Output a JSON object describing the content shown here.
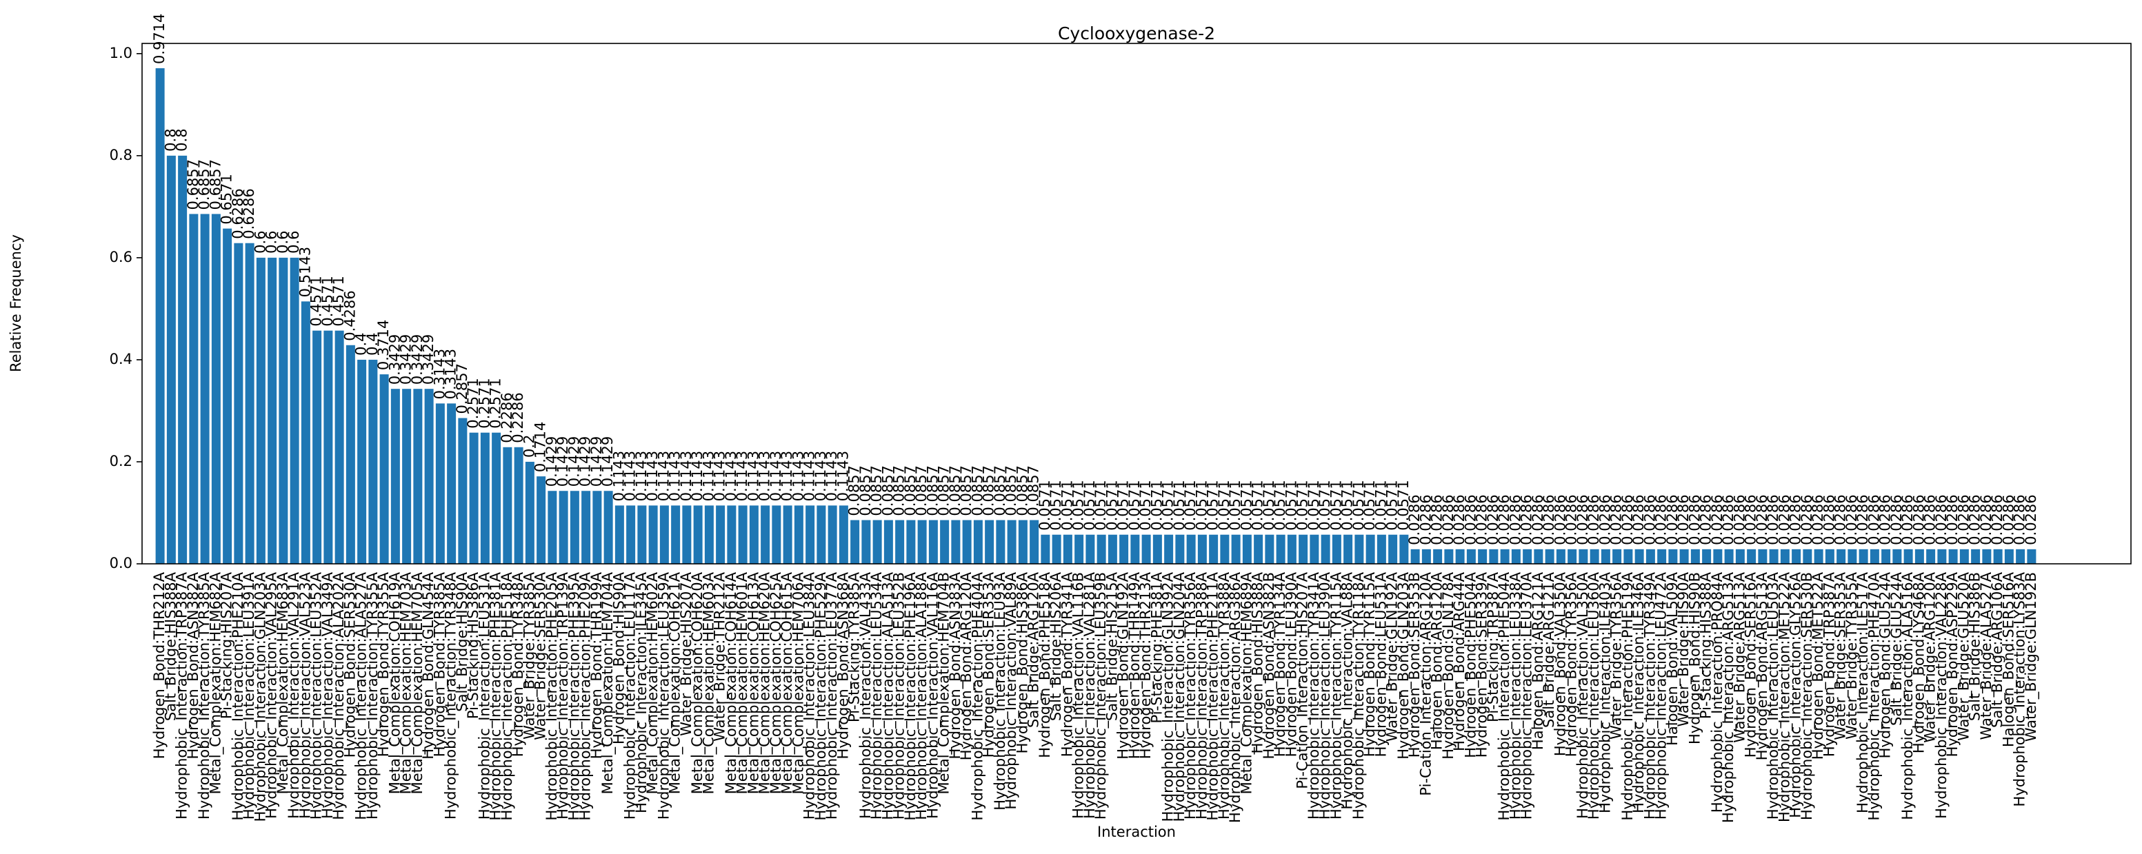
{
  "chart_data": {
    "type": "bar",
    "title": "Cyclooxygenase-2",
    "xlabel": "Interaction",
    "ylabel": "Relative Frequency",
    "color": "#1f77b4",
    "ylim": [
      0,
      1.02
    ],
    "yticks": [
      {
        "value": 0,
        "label": "0.0"
      },
      0.2,
      0.4,
      0.6,
      0.8,
      {
        "value": 1,
        "label": "1.0"
      }
    ],
    "categories": [
      "Hydrogen_Bond:THR212A",
      "Salt_Bridge:HIS388A",
      "Hydrophobic_Interaction:TRP387A",
      "Hydrogen_Bond:ASN382A",
      "Hydrophobic_Interaction:TYR385A",
      "Metal_Complexation:HEM682A",
      "Pi-Stacking:HIS207A",
      "Hydrophobic_Interaction:PHE210A",
      "Hydrophobic_Interaction:LEU391A",
      "Hydrophobic_Interaction:GLN203A",
      "Hydrophobic_Interaction:VAL295A",
      "Metal_Complexation:HEM683A",
      "Hydrophobic_Interaction:VAL291A",
      "Hydrophobic_Interaction:VAL523A",
      "Hydrophobic_Interaction:LEU352A",
      "Hydrophobic_Interaction:VAL349A",
      "Hydrophobic_Interaction:ALA202A",
      "Hydrogen_Bond:SER530A",
      "Hydrophobic_Interaction:ALA527A",
      "Hydrophobic_Interaction:TYR355A",
      "Hydrogen_Bond:TYR355A",
      "Metal_Complexation:COH619A",
      "Metal_Complexation:HEM703A",
      "Metal_Complexation:HEM705A",
      "Hydrogen_Bond:GLN454A",
      "Hydrogen_Bond:TYR385A",
      "Hydrophobic_Interaction:TYR348A",
      "Salt_Bridge:HIS90A",
      "Pi-Stacking:HIS386A",
      "Hydrophobic_Interaction:LEU531A",
      "Hydrophobic_Interaction:PHE381A",
      "Hydrophobic_Interaction:PHE518A",
      "Hydrogen_Bond:TYR348A",
      "Water_Bridge:TYR385A",
      "Water_Bridge:SER530A",
      "Hydrophobic_Interaction:PHE205A",
      "Hydrophobic_Interaction:TRP139A",
      "Hydrophobic_Interaction:PHE395A",
      "Hydrophobic_Interaction:PHE209A",
      "Hydrogen_Bond:THR199A",
      "Metal_Complexation:HEM704A",
      "Hydrogen_Bond:HIS90A",
      "Hydrophobic_Interaction:LEU117A",
      "Hydrophobic_Interaction:ILE345A",
      "Metal_Complexation:HEM602A",
      "Hydrophobic_Interaction:LEU359A",
      "Metal_Complexation:COH621A",
      "Water_Bridge:HIS207A",
      "Metal_Complexation:COH620A",
      "Metal_Complexation:HEM603A",
      "Water_Bridge:THR212A",
      "Metal_Complexation:COH614A",
      "Metal_Complexation:HEM601A",
      "Metal_Complexation:COH613A",
      "Metal_Complexation:HEM620A",
      "Metal_Complexation:COH625A",
      "Metal_Complexation:COH615A",
      "Metal_Complexation:HEM706A",
      "Hydrophobic_Interaction:LEU384A",
      "Hydrophobic_Interaction:PHE529A",
      "Hydrophobic_Interaction:LEU377A",
      "Hydrogen_Bond:ASN368A",
      "Pi-Stacking:TYR385A",
      "Hydrophobic_Interaction:VAL433A",
      "Hydrophobic_Interaction:LEU534A",
      "Hydrophobic_Interaction:ALA513A",
      "Hydrophobic_Interaction:LEU352B",
      "Hydrophobic_Interaction:PHE196A",
      "Hydrophobic_Interaction:ALA188A",
      "Hydrophobic_Interaction:VAL116A",
      "Metal_Complexation:HEM704B",
      "Hydrogen_Bond:ASN383A",
      "Hydrogen_Bond:ARG120A",
      "Hydrophobic_Interaction:PHE404A",
      "Hydrogen_Bond:SER353A",
      "Hydrophobic_Interaction:LEU93A",
      "Hydrophobic_Interaction:VAL89A",
      "Hydrogen_Bond:HIS386A",
      "Salt_Bridge:ARG120A",
      "Hydrogen_Bond:PHE518A",
      "Salt_Bridge:HIS206A",
      "Hydrogen_Bond:TYR341A",
      "Hydrophobic_Interaction:VAL116B",
      "Hydrophobic_Interaction:VAL281A",
      "Hydrophobic_Interaction:LEU359B",
      "Salt_Bridge:HIS215A",
      "Hydrogen_Bond:GLN192A",
      "Hydrogen_Bond:THR149A",
      "Hydrogen_Bond:THR213A",
      "Pi-Stacking:PHE381A",
      "Hydrophobic_Interaction:GLN392A",
      "Hydrophobic_Interaction:GLN204A",
      "Hydrophobic_Interaction:TYR356A",
      "Hydrophobic_Interaction:TRP388A",
      "Hydrophobic_Interaction:PHE211A",
      "Hydrophobic_Interaction:TYR388A",
      "Hydrophobic_Interaction:ARG386A",
      "Metal_Complexation:HEM689A",
      "Hydrogen_Bond:HIS388A",
      "Hydrogen_Bond:ASN382B",
      "Hydrogen_Bond:TYR134A",
      "Hydrogen_Bond:LEU390A",
      "Pi-Cation_Interaction:HIS207A",
      "Hydrophobic_Interaction:TYR341A",
      "Hydrophobic_Interaction:LEU390A",
      "Hydrophobic_Interaction:TYR115A",
      "Hydrophobic_Interaction:VAL88A",
      "Hydrophobic_Interaction:TYR118A",
      "Hydrogen_Bond:TYR115A",
      "Hydrogen_Bond:LEU531A",
      "Water_Bridge:GLN192A",
      "Hydrogen_Bond:GLN203A",
      "Hydrogen_Bond:SER353B",
      "Pi-Cation_Interaction:ARG120A",
      "Halogen_Bond:ARG120A",
      "Hydrogen_Bond:GLN178A",
      "Hydrogen_Bond:ARG44A",
      "Hydrogen_Bond:PHE504A",
      "Hydrogen_Bond:SER339A",
      "Pi-Stacking:TRP387A",
      "Hydrophobic_Interaction:PHE504A",
      "Hydrophobic_Interaction:LEU338A",
      "Hydrophobic_Interaction:LEU370A",
      "Halogen_Bond:ARG121A",
      "Salt_Bridge:ARG121A",
      "Hydrogen_Bond:VAL350A",
      "Hydrogen_Bond:TYR356A",
      "Hydrophobic_Interaction:VAL350A",
      "Hydrophobic_Interaction:LEU360A",
      "Hydrophobic_Interaction:ILE403A",
      "Water_Bridge:TYR356A",
      "Hydrophobic_Interaction:PHE519A",
      "Hydrophobic_Interaction:ILE346A",
      "Hydrophobic_Interaction:TYR349A",
      "Hydrophobic_Interaction:LEU472A",
      "Halogen_Bond:VAL509A",
      "Water_Bridge:HIS90A",
      "Hydrogen_Bond:HIS90B",
      "Pi-Stacking:HIS388A",
      "Hydrophobic_Interaction:PRO84A",
      "Hydrophobic_Interaction:ARG513A",
      "Water_Bridge:ARG513A",
      "Hydrogen_Bond:SER516A",
      "Hydrogen_Bond:ARG513A",
      "Hydrophobic_Interaction:LEU503A",
      "Hydrophobic_Interaction:MET522A",
      "Hydrophobic_Interaction:GLY526A",
      "Hydrophobic_Interaction:SER530B",
      "Hydrogen_Bond:MET522A",
      "Hydrogen_Bond:TRP387A",
      "Water_Bridge:SER353A",
      "Water_Bridge:TYR355A",
      "Hydrophobic_Interaction:ILE517A",
      "Hydrophobic_Interaction:PHE470A",
      "Hydrogen_Bond:GLU524A",
      "Salt_Bridge:GLU524A",
      "Hydrophobic_Interaction:ALA516A",
      "Hydrogen_Bond:LYS468A",
      "Water_Bridge:ARG120A",
      "Hydrophobic_Interaction:VAL228A",
      "Hydrogen_Bond:ASP229A",
      "Water_Bridge:GLU520A",
      "Salt_Bridge:HIS386B",
      "Water_Bridge:ALA527A",
      "Salt_Bridge:ARG106A",
      "Halogen_Bond:SER516A",
      "Hydrophobic_Interaction:LYS83A",
      "Water_Bridge:GLN192B"
    ],
    "values": [
      0.9714,
      0.8,
      0.8,
      0.6857,
      0.6857,
      0.6857,
      0.6571,
      0.6286,
      0.6286,
      0.6,
      0.6,
      0.6,
      0.6,
      0.5143,
      0.4571,
      0.4571,
      0.4571,
      0.4286,
      0.4,
      0.4,
      0.3714,
      0.3429,
      0.3429,
      0.3429,
      0.3429,
      0.3143,
      0.3143,
      0.2857,
      0.2571,
      0.2571,
      0.2571,
      0.2286,
      0.2286,
      0.2,
      0.1714,
      0.1429,
      0.1429,
      0.1429,
      0.1429,
      0.1429,
      0.1429,
      0.1143,
      0.1143,
      0.1143,
      0.1143,
      0.1143,
      0.1143,
      0.1143,
      0.1143,
      0.1143,
      0.1143,
      0.1143,
      0.1143,
      0.1143,
      0.1143,
      0.1143,
      0.1143,
      0.1143,
      0.1143,
      0.1143,
      0.1143,
      0.1143,
      0.0857,
      0.0857,
      0.0857,
      0.0857,
      0.0857,
      0.0857,
      0.0857,
      0.0857,
      0.0857,
      0.0857,
      0.0857,
      0.0857,
      0.0857,
      0.0857,
      0.0857,
      0.0857,
      0.0857,
      0.0571,
      0.0571,
      0.0571,
      0.0571,
      0.0571,
      0.0571,
      0.0571,
      0.0571,
      0.0571,
      0.0571,
      0.0571,
      0.0571,
      0.0571,
      0.0571,
      0.0571,
      0.0571,
      0.0571,
      0.0571,
      0.0571,
      0.0571,
      0.0571,
      0.0571,
      0.0571,
      0.0571,
      0.0571,
      0.0571,
      0.0571,
      0.0571,
      0.0571,
      0.0571,
      0.0571,
      0.0571,
      0.0571,
      0.0286,
      0.0286,
      0.0286,
      0.0286,
      0.0286,
      0.0286,
      0.0286,
      0.0286,
      0.0286,
      0.0286,
      0.0286,
      0.0286,
      0.0286,
      0.0286,
      0.0286,
      0.0286,
      0.0286,
      0.0286,
      0.0286,
      0.0286,
      0.0286,
      0.0286,
      0.0286,
      0.0286,
      0.0286,
      0.0286,
      0.0286,
      0.0286,
      0.0286,
      0.0286,
      0.0286,
      0.0286,
      0.0286,
      0.0286,
      0.0286,
      0.0286,
      0.0286,
      0.0286,
      0.0286,
      0.0286,
      0.0286,
      0.0286,
      0.0286,
      0.0286,
      0.0286,
      0.0286,
      0.0286,
      0.0286,
      0.0286,
      0.0286,
      0.0286,
      0.0286,
      0.0286,
      0.0286,
      0.0286,
      0.0286
    ]
  }
}
